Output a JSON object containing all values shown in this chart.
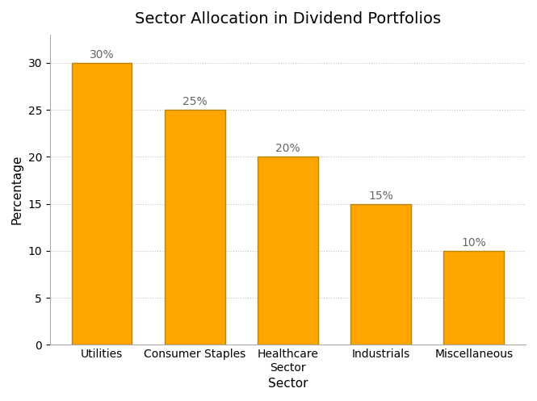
{
  "title": "Sector Allocation in Dividend Portfolios",
  "values": [
    30,
    25,
    20,
    15,
    10
  ],
  "x_labels": [
    "Utilities",
    "Consumer Staples",
    "Healthcare\nSector",
    "Industrials",
    "Miscellaneous"
  ],
  "bar_color": "#FFA500",
  "bar_edgecolor": "#B8860B",
  "bar_linewidth": 1.0,
  "bar_width": 0.65,
  "xlabel": "Sector",
  "ylabel": "Percentage",
  "ylim": [
    0,
    33
  ],
  "yticks": [
    0,
    5,
    10,
    15,
    20,
    25,
    30
  ],
  "title_fontsize": 14,
  "axis_label_fontsize": 11,
  "tick_fontsize": 10,
  "annotation_fontsize": 10,
  "annotation_color": "#666666",
  "background_color": "#ffffff",
  "grid_color": "#bbbbbb",
  "grid_linestyle": ":",
  "grid_alpha": 0.9,
  "grid_linewidth": 0.8
}
